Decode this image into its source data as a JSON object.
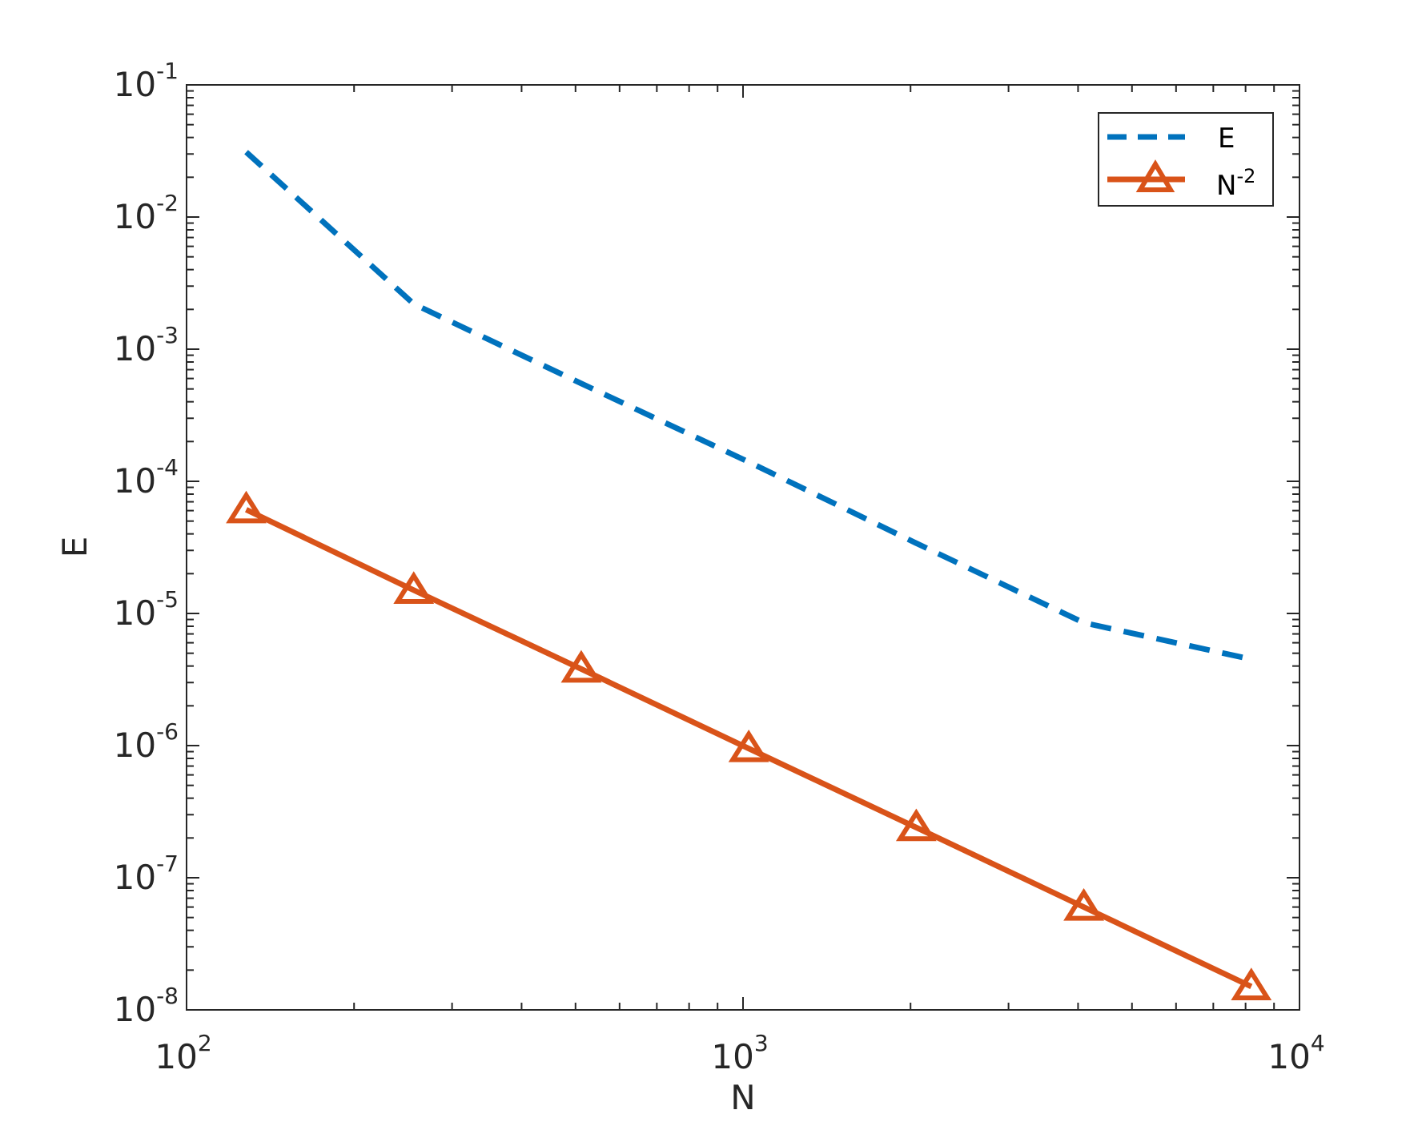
{
  "chart_data": {
    "type": "line",
    "xlabel": "N",
    "ylabel": "E",
    "xscale": "log",
    "yscale": "log",
    "xlim": [
      100,
      10000
    ],
    "ylim": [
      1e-08,
      0.1
    ],
    "xticks": [
      {
        "base": "10",
        "exp": "2",
        "value": 100
      },
      {
        "base": "10",
        "exp": "3",
        "value": 1000
      },
      {
        "base": "10",
        "exp": "4",
        "value": 10000
      }
    ],
    "yticks": [
      {
        "base": "10",
        "exp": "-1",
        "value": 0.1
      },
      {
        "base": "10",
        "exp": "-2",
        "value": 0.01
      },
      {
        "base": "10",
        "exp": "-3",
        "value": 0.001
      },
      {
        "base": "10",
        "exp": "-4",
        "value": 0.0001
      },
      {
        "base": "10",
        "exp": "-5",
        "value": 1e-05
      },
      {
        "base": "10",
        "exp": "-6",
        "value": 1e-06
      },
      {
        "base": "10",
        "exp": "-7",
        "value": 1e-07
      },
      {
        "base": "10",
        "exp": "-8",
        "value": 1e-08
      }
    ],
    "grid": false,
    "legend_position": "top-right",
    "series": [
      {
        "name": "E",
        "style": "dashed",
        "color": "#0072BD",
        "marker": "none",
        "x": [
          128,
          256,
          512,
          1024,
          2048,
          4096,
          8192
        ],
        "y": [
          0.031,
          0.0022,
          0.00055,
          0.00014,
          3.4e-05,
          8.5e-06,
          4.5e-06
        ]
      },
      {
        "name_base": "N",
        "name_exp": "-2",
        "style": "solid",
        "color": "#D95319",
        "marker": "triangle",
        "x": [
          128,
          256,
          512,
          1024,
          2048,
          4096,
          8192
        ],
        "y": [
          6.1e-05,
          1.5e-05,
          3.8e-06,
          9.5e-07,
          2.4e-07,
          6e-08,
          1.5e-08
        ]
      }
    ]
  }
}
